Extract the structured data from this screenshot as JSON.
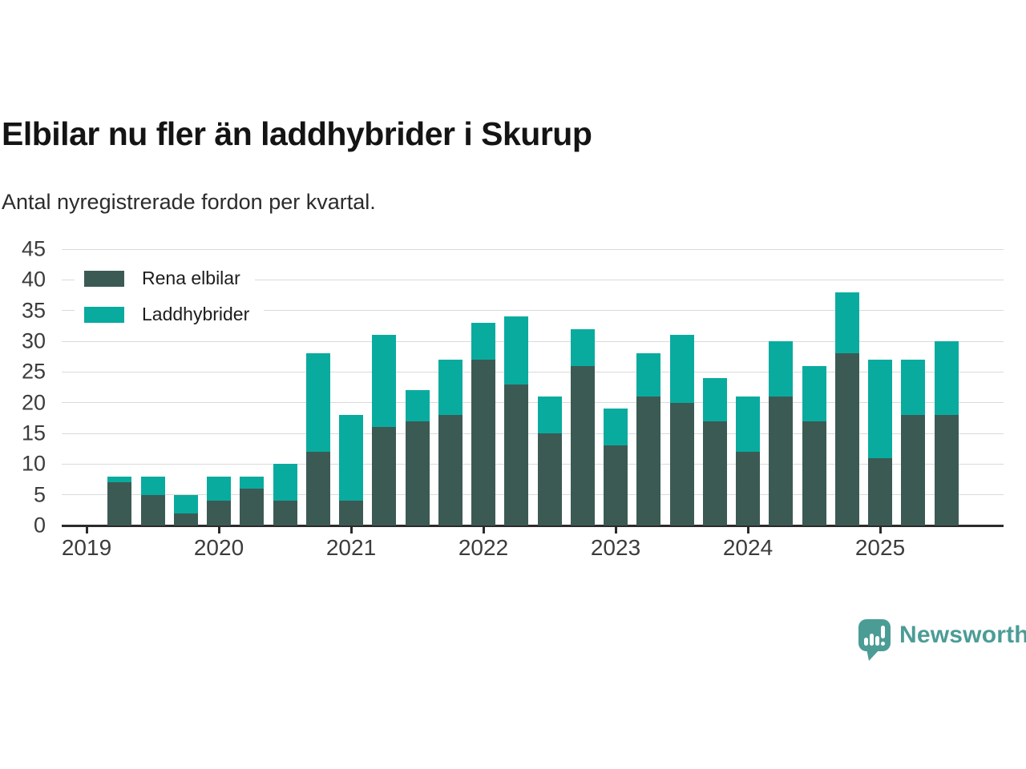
{
  "header": {
    "title": "Elbilar nu fler än laddhybrider i Skurup",
    "subtitle": "Antal nyregistrerade fordon per kvartal."
  },
  "legend": {
    "items": [
      {
        "label": "Rena elbilar",
        "color": "#3C5A54"
      },
      {
        "label": "Laddhybrider",
        "color": "#09AB9F"
      }
    ]
  },
  "chart_data": {
    "type": "bar",
    "stacked": true,
    "title": "Elbilar nu fler än laddhybrider i Skurup",
    "subtitle": "Antal nyregistrerade fordon per kvartal.",
    "categories": [
      "2019 Q2",
      "2019 Q3",
      "2019 Q4",
      "2020 Q1",
      "2020 Q2",
      "2020 Q3",
      "2020 Q4",
      "2021 Q1",
      "2021 Q2",
      "2021 Q3",
      "2021 Q4",
      "2022 Q1",
      "2022 Q2",
      "2022 Q3",
      "2022 Q4",
      "2023 Q1",
      "2023 Q2",
      "2023 Q3",
      "2023 Q4",
      "2024 Q1",
      "2024 Q2",
      "2024 Q3",
      "2024 Q4",
      "2025 Q1",
      "2025 Q2",
      "2025 Q3"
    ],
    "series": [
      {
        "name": "Rena elbilar",
        "color": "#3C5A54",
        "values": [
          7,
          5,
          2,
          4,
          6,
          4,
          12,
          4,
          16,
          17,
          18,
          27,
          23,
          15,
          26,
          13,
          21,
          20,
          17,
          12,
          21,
          17,
          28,
          11,
          18,
          18
        ]
      },
      {
        "name": "Laddhybrider",
        "color": "#09AB9F",
        "values": [
          1,
          3,
          3,
          4,
          2,
          6,
          16,
          14,
          15,
          5,
          9,
          6,
          11,
          6,
          6,
          6,
          7,
          11,
          7,
          9,
          9,
          9,
          10,
          16,
          9,
          12
        ]
      }
    ],
    "x_tick_labels": [
      "2019",
      "2020",
      "2021",
      "2022",
      "2023",
      "2024",
      "2025"
    ],
    "ylim": [
      0,
      45
    ],
    "y_ticks": [
      0,
      5,
      10,
      15,
      20,
      25,
      30,
      35,
      40,
      45
    ],
    "grid": "horizontal",
    "legend_position": "top-left"
  },
  "branding": {
    "text": "Newsworthy",
    "color": "#4C9C96"
  }
}
